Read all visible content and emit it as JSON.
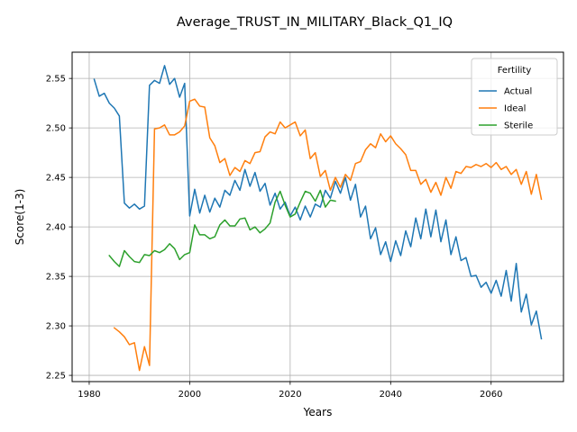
{
  "chart_data": {
    "type": "line",
    "title": "Average_TRUST_IN_MILITARY_Black_Q1_IQ",
    "xlabel": "Years",
    "ylabel": "Score(1-3)",
    "xlim": [
      1976.6,
      2074.4
    ],
    "ylim": [
      2.2437,
      2.5765
    ],
    "x_ticks": [
      1980,
      2000,
      2020,
      2040,
      2060
    ],
    "y_ticks": [
      2.25,
      2.3,
      2.35,
      2.4,
      2.45,
      2.5,
      2.55
    ],
    "x_tick_labels": [
      "1980",
      "2000",
      "2020",
      "2040",
      "2060"
    ],
    "y_tick_labels": [
      "2.25",
      "2.30",
      "2.35",
      "2.40",
      "2.45",
      "2.50",
      "2.55"
    ],
    "grid": true,
    "legend": {
      "title": "Fertility",
      "position": "top-right"
    },
    "series": [
      {
        "name": "Actual",
        "color": "#1f77b4",
        "x": [
          1981,
          1982,
          1983,
          1984,
          1985,
          1986,
          1987,
          1988,
          1989,
          1990,
          1991,
          1992,
          1993,
          1994,
          1995,
          1996,
          1997,
          1998,
          1999,
          2000,
          2001,
          2002,
          2003,
          2004,
          2005,
          2006,
          2007,
          2008,
          2009,
          2010,
          2011,
          2012,
          2013,
          2014,
          2015,
          2016,
          2017,
          2018,
          2019,
          2020,
          2021,
          2022,
          2023,
          2024,
          2025,
          2026,
          2027,
          2028,
          2029,
          2030,
          2031,
          2032,
          2033,
          2034,
          2035,
          2036,
          2037,
          2038,
          2039,
          2040,
          2041,
          2042,
          2043,
          2044,
          2045,
          2046,
          2047,
          2048,
          2049,
          2050,
          2051,
          2052,
          2053,
          2054,
          2055,
          2056,
          2057,
          2058,
          2059,
          2060,
          2061,
          2062,
          2063,
          2064,
          2065,
          2066,
          2067,
          2068,
          2069,
          2070
        ],
        "y": [
          2.549,
          2.532,
          2.535,
          2.525,
          2.52,
          2.512,
          2.424,
          2.419,
          2.423,
          2.418,
          2.421,
          2.543,
          2.548,
          2.545,
          2.563,
          2.544,
          2.55,
          2.531,
          2.545,
          2.411,
          2.438,
          2.414,
          2.432,
          2.415,
          2.429,
          2.42,
          2.437,
          2.432,
          2.447,
          2.437,
          2.458,
          2.441,
          2.455,
          2.436,
          2.444,
          2.422,
          2.434,
          2.418,
          2.425,
          2.411,
          2.42,
          2.407,
          2.421,
          2.41,
          2.423,
          2.42,
          2.437,
          2.429,
          2.446,
          2.434,
          2.45,
          2.427,
          2.443,
          2.41,
          2.421,
          2.388,
          2.399,
          2.372,
          2.385,
          2.365,
          2.386,
          2.371,
          2.396,
          2.38,
          2.409,
          2.388,
          2.418,
          2.39,
          2.417,
          2.385,
          2.407,
          2.372,
          2.39,
          2.366,
          2.369,
          2.35,
          2.351,
          2.339,
          2.344,
          2.333,
          2.346,
          2.33,
          2.356,
          2.325,
          2.363,
          2.314,
          2.332,
          2.301,
          2.315,
          2.287
        ]
      },
      {
        "name": "Ideal",
        "color": "#ff7f0e",
        "x": [
          1985,
          1986,
          1987,
          1988,
          1989,
          1990,
          1991,
          1992,
          1993,
          1994,
          1995,
          1996,
          1997,
          1998,
          1999,
          2000,
          2001,
          2002,
          2003,
          2004,
          2005,
          2006,
          2007,
          2008,
          2009,
          2010,
          2011,
          2012,
          2013,
          2014,
          2015,
          2016,
          2017,
          2018,
          2019,
          2020,
          2021,
          2022,
          2023,
          2024,
          2025,
          2026,
          2027,
          2028,
          2029,
          2030,
          2031,
          2032,
          2033,
          2034,
          2035,
          2036,
          2037,
          2038,
          2039,
          2040,
          2041,
          2042,
          2043,
          2044,
          2045,
          2046,
          2047,
          2048,
          2049,
          2050,
          2051,
          2052,
          2053,
          2054,
          2055,
          2056,
          2057,
          2058,
          2059,
          2060,
          2061,
          2062,
          2063,
          2064,
          2065,
          2066,
          2067,
          2068,
          2069,
          2070
        ],
        "y": [
          2.298,
          2.294,
          2.289,
          2.281,
          2.283,
          2.255,
          2.279,
          2.26,
          2.499,
          2.5,
          2.503,
          2.493,
          2.493,
          2.496,
          2.502,
          2.527,
          2.529,
          2.522,
          2.521,
          2.49,
          2.482,
          2.465,
          2.469,
          2.452,
          2.46,
          2.456,
          2.467,
          2.464,
          2.475,
          2.476,
          2.491,
          2.496,
          2.494,
          2.506,
          2.5,
          2.503,
          2.506,
          2.492,
          2.498,
          2.469,
          2.475,
          2.451,
          2.457,
          2.437,
          2.45,
          2.44,
          2.453,
          2.447,
          2.464,
          2.466,
          2.478,
          2.484,
          2.48,
          2.494,
          2.486,
          2.492,
          2.484,
          2.479,
          2.473,
          2.457,
          2.457,
          2.443,
          2.448,
          2.435,
          2.445,
          2.432,
          2.45,
          2.439,
          2.456,
          2.454,
          2.461,
          2.46,
          2.463,
          2.461,
          2.464,
          2.46,
          2.465,
          2.458,
          2.461,
          2.453,
          2.458,
          2.443,
          2.456,
          2.433,
          2.453,
          2.428
        ]
      },
      {
        "name": "Sterile",
        "color": "#2ca02c",
        "x": [
          1984,
          1985,
          1986,
          1987,
          1988,
          1989,
          1990,
          1991,
          1992,
          1993,
          1994,
          1995,
          1996,
          1997,
          1998,
          1999,
          2000,
          2001,
          2002,
          2003,
          2004,
          2005,
          2006,
          2007,
          2008,
          2009,
          2010,
          2011,
          2012,
          2013,
          2014,
          2015,
          2016,
          2017,
          2018,
          2019,
          2020,
          2021,
          2022,
          2023,
          2024,
          2025,
          2026,
          2027,
          2028,
          2029
        ],
        "y": [
          2.371,
          2.365,
          2.36,
          2.376,
          2.37,
          2.365,
          2.364,
          2.372,
          2.371,
          2.376,
          2.374,
          2.377,
          2.383,
          2.378,
          2.367,
          2.372,
          2.374,
          2.402,
          2.392,
          2.392,
          2.388,
          2.39,
          2.402,
          2.407,
          2.401,
          2.401,
          2.408,
          2.409,
          2.397,
          2.4,
          2.394,
          2.398,
          2.404,
          2.425,
          2.436,
          2.422,
          2.41,
          2.413,
          2.425,
          2.436,
          2.434,
          2.426,
          2.437,
          2.42,
          2.427,
          2.426
        ]
      }
    ]
  }
}
